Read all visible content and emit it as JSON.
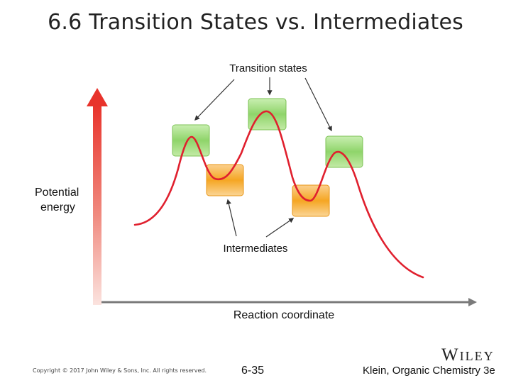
{
  "slide": {
    "title": "6.6 Transition States vs. Intermediates"
  },
  "diagram": {
    "y_axis_label_line1": "Potential",
    "y_axis_label_line2": "energy",
    "x_axis_label": "Reaction coordinate",
    "transition_states_label": "Transition states",
    "intermediates_label": "Intermediates",
    "colors": {
      "curve": "#e0202e",
      "transition_state_box": "#8fd46a",
      "intermediate_box": "#f5a623",
      "axis_gradient_top": "#e8332b",
      "x_axis": "#7a7a7a",
      "arrow": "#333333"
    }
  },
  "footer": {
    "copyright": "Copyright © 2017 John Wiley & Sons, Inc. All rights reserved.",
    "page_number": "6-35",
    "book": "Klein, Organic Chemistry 3e",
    "publisher_logo": "Wiley"
  }
}
